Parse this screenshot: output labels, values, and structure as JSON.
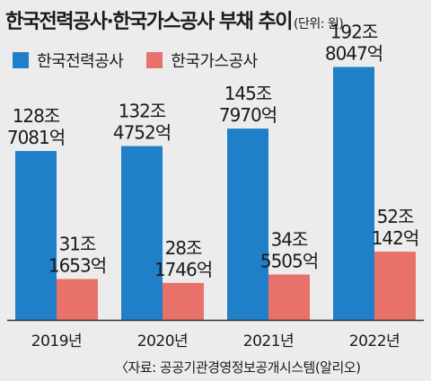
{
  "header": {
    "title": "한국전력공사·한국가스공사 부채 추이",
    "unit": "(단위: 원)"
  },
  "source": "〈자료: 공공기관경영정보공개시스템(알리오)",
  "colors": {
    "kepco": "#1f7fc8",
    "kogas": "#e8716a",
    "background": "#ececec",
    "axis": "#333333"
  },
  "chart_data": {
    "type": "bar",
    "title": "한국전력공사·한국가스공사 부채 추이",
    "unit": "(단위: 원)",
    "categories": [
      "2019년",
      "2020년",
      "2021년",
      "2022년"
    ],
    "series": [
      {
        "name": "한국전력공사",
        "values": [
          1287081,
          1324752,
          1457970,
          1928047
        ],
        "value_unit": "억 원",
        "labels": [
          [
            "128조",
            "7081억"
          ],
          [
            "132조",
            "4752억"
          ],
          [
            "145조",
            "7970억"
          ],
          [
            "192조",
            "8047억"
          ]
        ]
      },
      {
        "name": "한국가스공사",
        "values": [
          311653,
          281746,
          345505,
          520142
        ],
        "value_unit": "억 원",
        "labels": [
          [
            "31조",
            "1653억"
          ],
          [
            "28조",
            "1746억"
          ],
          [
            "34조",
            "5505억"
          ],
          [
            "52조",
            "142억"
          ]
        ]
      }
    ],
    "legend": "top-left",
    "grid": false,
    "ylim": [
      0,
      2000000
    ]
  }
}
